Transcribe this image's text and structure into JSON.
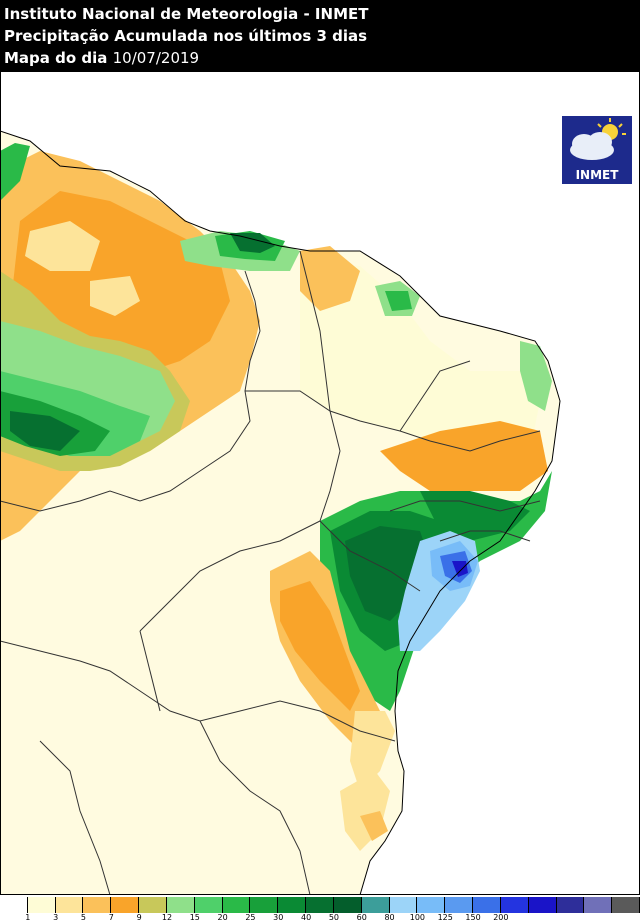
{
  "header": {
    "line1": "Instituto Nacional de Meteorologia - INMET",
    "line2": "Precipitação Acumulada nos últimos 3 dias",
    "line3_prefix": "Mapa do dia ",
    "date": "10/07/2019"
  },
  "logo": {
    "text": "INMET",
    "icon": "cloud-sun-icon"
  },
  "legend": {
    "colors": [
      "#ffffff",
      "#fefcd6",
      "#fde49a",
      "#fbc15a",
      "#f9a42a",
      "#c8c85a",
      "#8fe08a",
      "#4fd06a",
      "#2aba48",
      "#18a03a",
      "#0a8a34",
      "#067030",
      "#045e2c",
      "#3c9e9a",
      "#9cd4f8",
      "#78bcf8",
      "#5a9af0",
      "#3a70e8",
      "#2434e0",
      "#1a14c8",
      "#2e2e9a",
      "#7070b8",
      "#5a5a5a"
    ],
    "ticks": [
      "1",
      "3",
      "5",
      "7",
      "9",
      "12",
      "15",
      "20",
      "25",
      "30",
      "40",
      "50",
      "60",
      "80",
      "100",
      "125",
      "150",
      "200"
    ]
  }
}
